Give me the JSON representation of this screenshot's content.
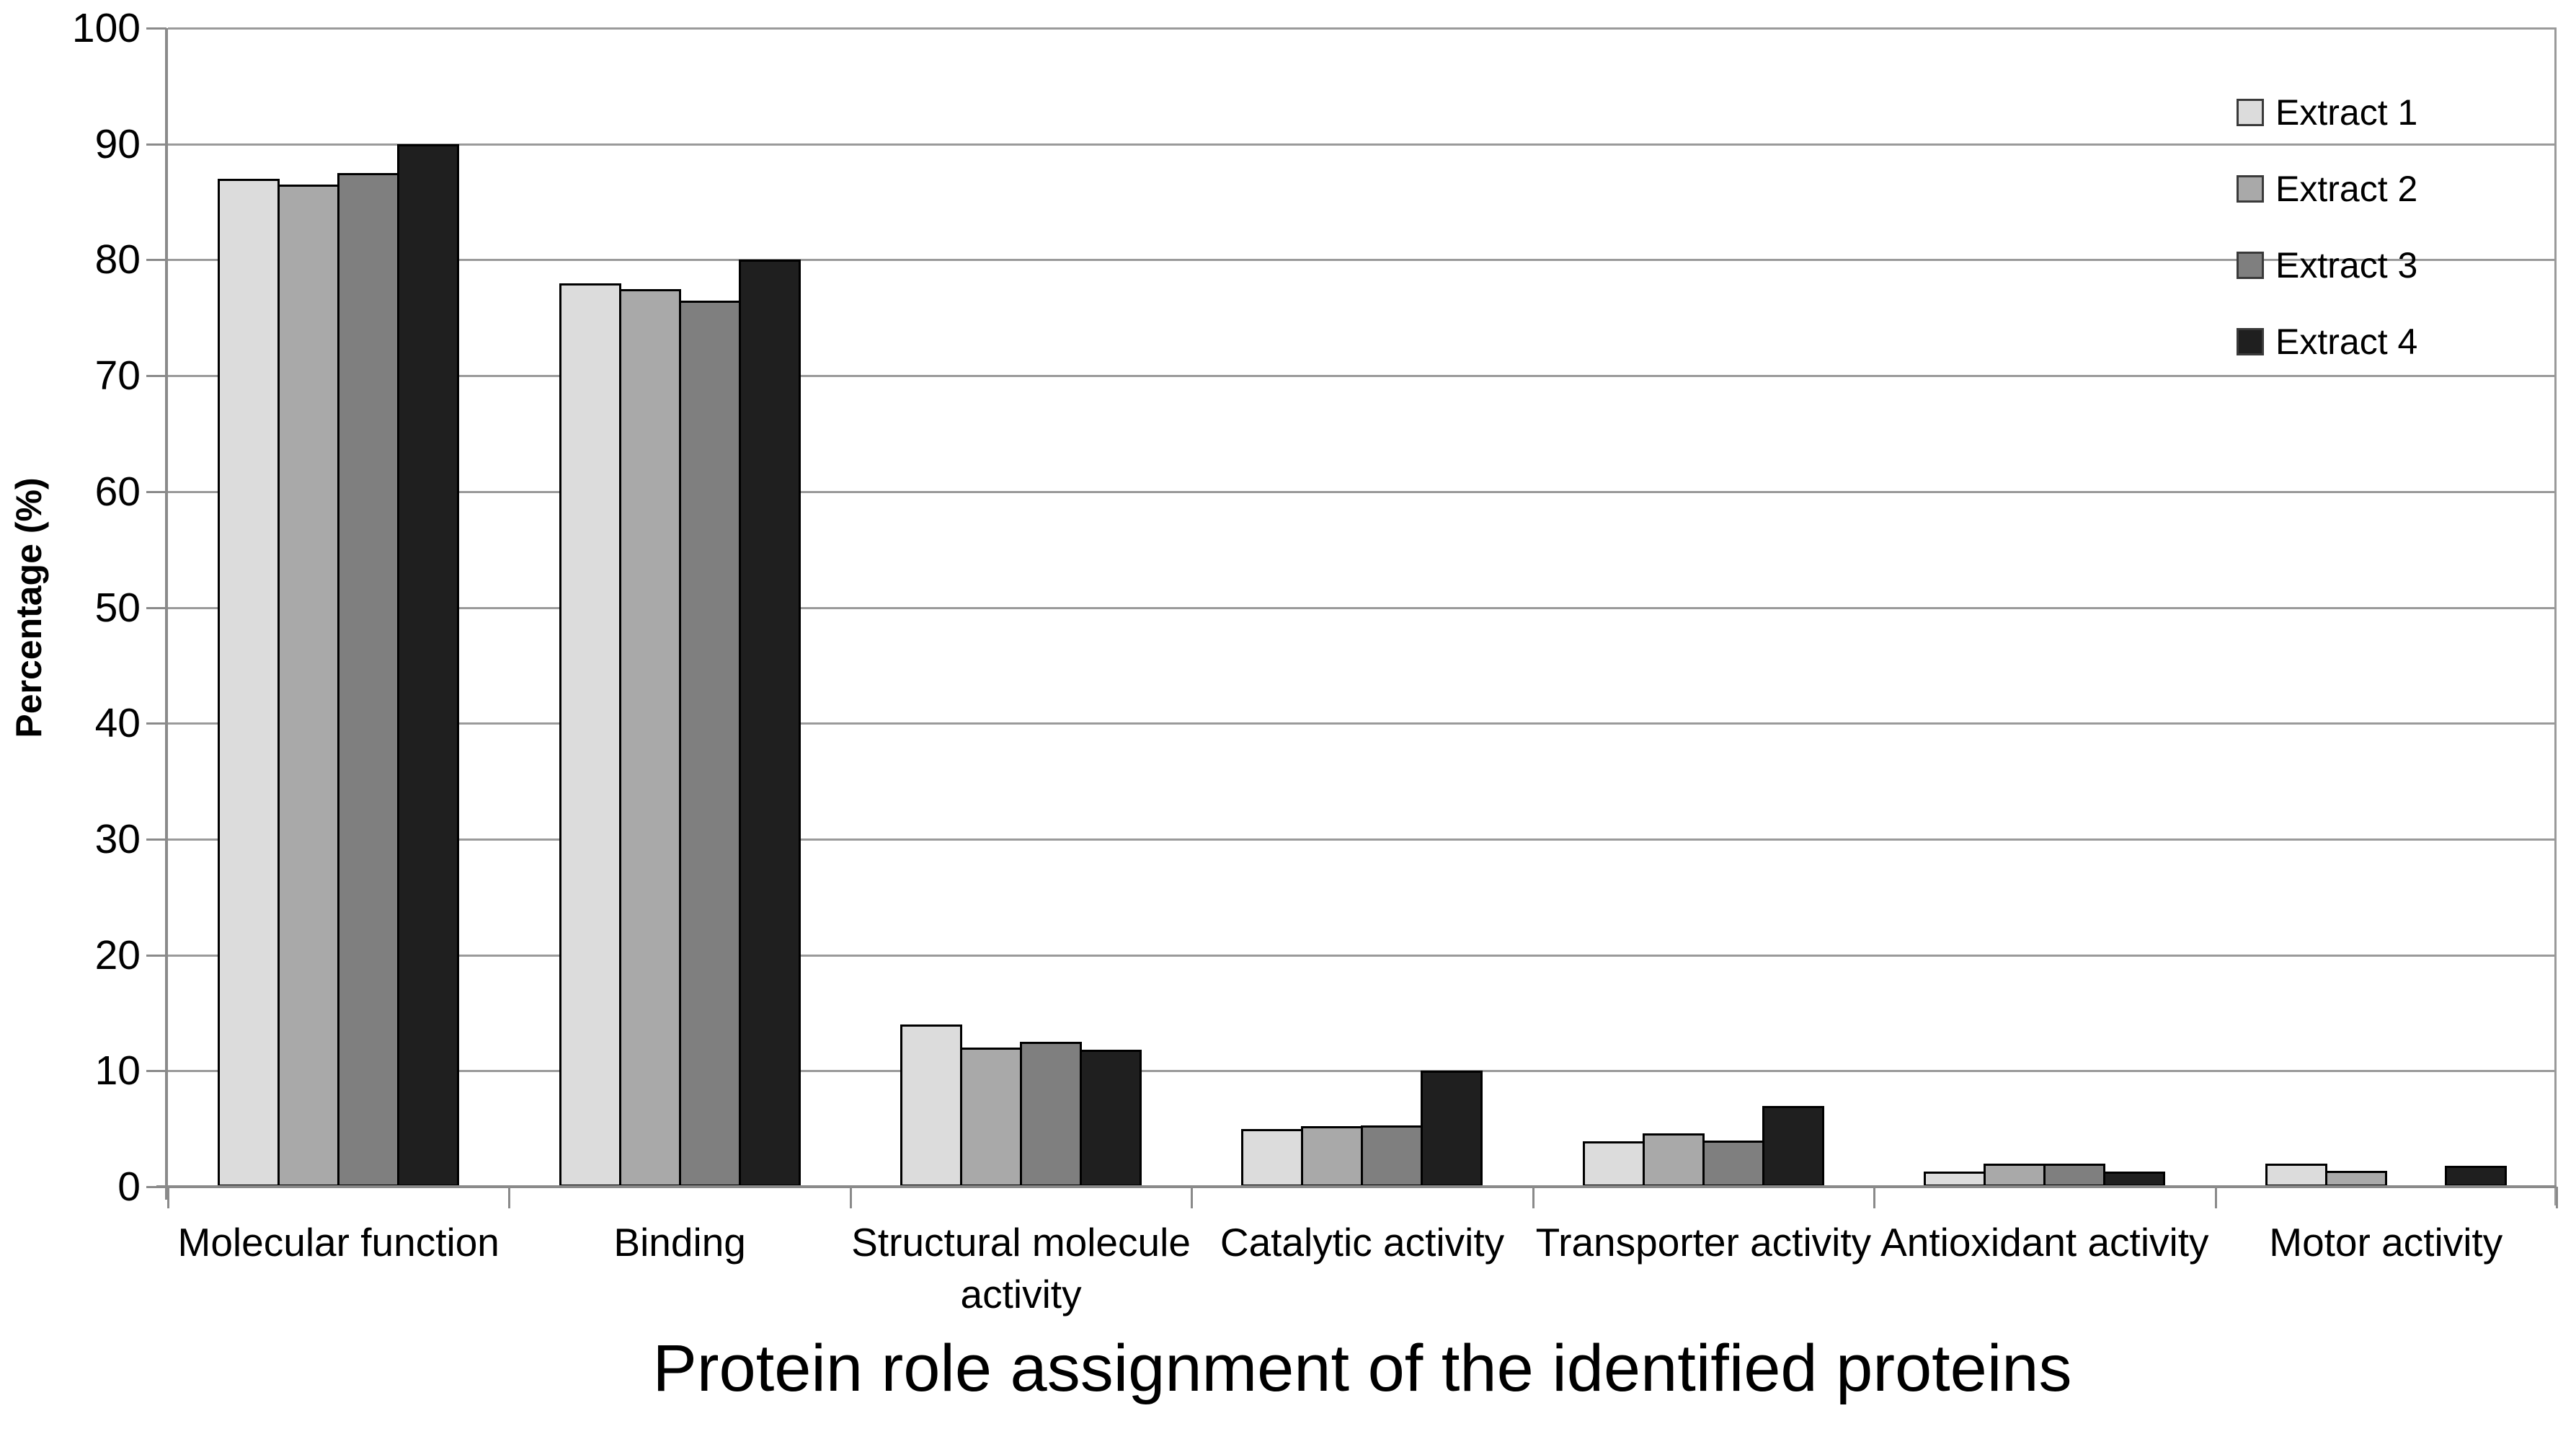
{
  "chart_data": {
    "type": "bar",
    "title": "Protein role assignment of the identified proteins",
    "xlabel": "",
    "ylabel": "Percentage (%)",
    "ylim": [
      0,
      100
    ],
    "ytick_step": 10,
    "ytick_labels": [
      "0",
      "10",
      "20",
      "30",
      "40",
      "50",
      "60",
      "70",
      "80",
      "90",
      "100"
    ],
    "grid": "horizontal",
    "legend_position": "top-right",
    "categories": [
      "Molecular function",
      "Binding",
      "Structural molecule activity",
      "Catalytic activity",
      "Transporter activity",
      "Antioxidant activity",
      "Motor activity"
    ],
    "category_label_lines": [
      [
        "Molecular function"
      ],
      [
        "Binding"
      ],
      [
        "Structural molecule",
        "activity"
      ],
      [
        "Catalytic activity"
      ],
      [
        "Transporter activity"
      ],
      [
        "Antioxidant activity"
      ],
      [
        "Motor activity"
      ]
    ],
    "series": [
      {
        "name": "Extract 1",
        "color": "#dcdcdc",
        "values": [
          87,
          78,
          14,
          5,
          3.9,
          1.3,
          2
        ]
      },
      {
        "name": "Extract 2",
        "color": "#a9a9a9",
        "values": [
          86.5,
          77.5,
          12,
          5.2,
          4.6,
          2,
          1.4
        ]
      },
      {
        "name": "Extract 3",
        "color": "#7f7f7f",
        "values": [
          87.5,
          76.5,
          12.5,
          5.3,
          4,
          2,
          0
        ]
      },
      {
        "name": "Extract 4",
        "color": "#1f1f1f",
        "values": [
          90,
          80,
          11.8,
          10,
          7,
          1.3,
          1.8
        ]
      }
    ],
    "colors": {
      "bar_border": "#000000",
      "gridline": "#9a9a9a",
      "axis": "#8a8a8a",
      "text": "#000000",
      "background": "#ffffff"
    }
  }
}
